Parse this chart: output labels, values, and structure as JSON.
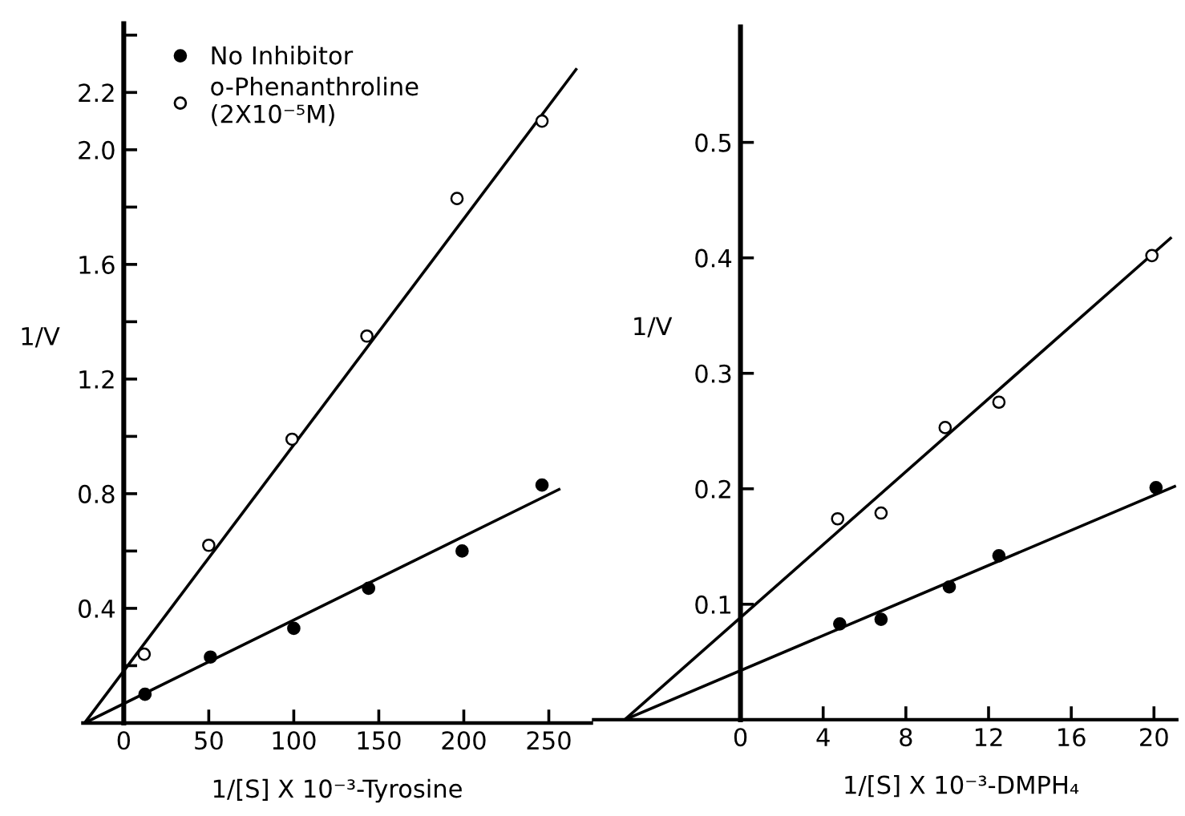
{
  "chart_data": [
    {
      "type": "scatter",
      "xlabel": "1/[S] X 10⁻³-Tyrosine",
      "ylabel": "1/V",
      "xlim": [
        -24,
        275
      ],
      "ylim": [
        0,
        2.44
      ],
      "xticks": [
        0,
        50,
        100,
        150,
        200,
        250
      ],
      "yticks": [
        {
          "value": 0.2,
          "label": null
        },
        0.4,
        {
          "value": 0.6,
          "label": null
        },
        0.8,
        {
          "value": 1.0,
          "label": null
        },
        1.2,
        {
          "value": 1.4,
          "label": null
        },
        1.6,
        {
          "value": 1.8,
          "label": null
        },
        {
          "value": 2.0,
          "label": "2.0"
        },
        2.2,
        {
          "value": 2.4,
          "label": null
        }
      ],
      "legend": "top left",
      "marker": "circle",
      "series": [
        {
          "name": "No Inhibitor",
          "color": "#000000",
          "x": [
            12.5,
            51,
            100,
            144,
            199,
            246
          ],
          "values": [
            0.1,
            0.23,
            0.33,
            0.47,
            0.6,
            0.83
          ]
        },
        {
          "name": "o-Phenanthroline\n(2X10⁻⁵M)",
          "color": "#ffffff",
          "x": [
            12,
            50,
            99,
            143,
            196,
            246
          ],
          "values": [
            0.24,
            0.62,
            0.99,
            1.35,
            1.83,
            2.1
          ]
        },
        {
          "type": "line",
          "marker": "none",
          "color": "#000000",
          "x": [
            -23,
            266
          ],
          "values": [
            0,
            2.28
          ]
        },
        {
          "type": "line",
          "marker": "none",
          "color": "#000000",
          "x": [
            -23,
            256
          ],
          "values": [
            0,
            0.815
          ]
        }
      ]
    },
    {
      "type": "scatter",
      "xlabel": "1/[S] X 10⁻³-DMPH₄",
      "ylabel": "1/V",
      "xlim": [
        -7.1,
        21.1
      ],
      "ylim": [
        0,
        0.6
      ],
      "xticks": [
        0,
        4,
        8,
        12,
        16,
        20
      ],
      "yticks": [
        0.1,
        0.2,
        0.3,
        0.4,
        0.5
      ],
      "marker": "circle",
      "series": [
        {
          "color": "#000000",
          "x": [
            4.8,
            6.8,
            10.1,
            12.5,
            20.1
          ],
          "values": [
            0.083,
            0.087,
            0.115,
            0.142,
            0.201
          ]
        },
        {
          "color": "#ffffff",
          "x": [
            4.7,
            6.8,
            9.9,
            12.5,
            19.9
          ],
          "values": [
            0.174,
            0.179,
            0.253,
            0.275,
            0.402
          ]
        },
        {
          "type": "line",
          "marker": "none",
          "color": "#000000",
          "x": [
            -5.6,
            20.8
          ],
          "values": [
            0,
            0.417
          ]
        },
        {
          "type": "line",
          "marker": "none",
          "color": "#000000",
          "x": [
            -5.6,
            21.0
          ],
          "values": [
            0,
            0.202
          ]
        }
      ]
    }
  ]
}
